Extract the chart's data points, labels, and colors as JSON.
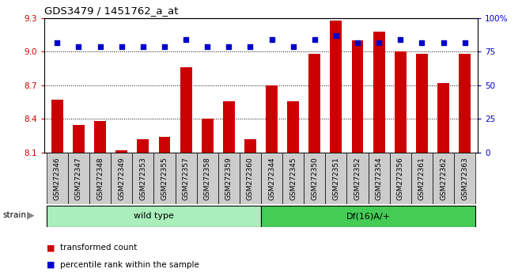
{
  "title": "GDS3479 / 1451762_a_at",
  "samples": [
    "GSM272346",
    "GSM272347",
    "GSM272348",
    "GSM272349",
    "GSM272353",
    "GSM272355",
    "GSM272357",
    "GSM272358",
    "GSM272359",
    "GSM272360",
    "GSM272344",
    "GSM272345",
    "GSM272350",
    "GSM272351",
    "GSM272352",
    "GSM272354",
    "GSM272356",
    "GSM272361",
    "GSM272362",
    "GSM272363"
  ],
  "red_values": [
    8.57,
    8.35,
    8.38,
    8.12,
    8.22,
    8.24,
    8.86,
    8.4,
    8.56,
    8.22,
    8.7,
    8.56,
    8.98,
    9.28,
    9.1,
    9.18,
    9.0,
    8.98,
    8.72,
    8.98
  ],
  "blue_values": [
    82,
    79,
    79,
    79,
    79,
    79,
    84,
    79,
    79,
    79,
    84,
    79,
    84,
    87,
    82,
    82,
    84,
    82,
    82,
    82
  ],
  "wild_type_count": 10,
  "df16_count": 10,
  "ylim_left": [
    8.1,
    9.3
  ],
  "ylim_right": [
    0,
    100
  ],
  "yticks_left": [
    8.1,
    8.4,
    8.7,
    9.0,
    9.3
  ],
  "yticks_right": [
    0,
    25,
    50,
    75,
    100
  ],
  "ytick_labels_left": [
    "8.1",
    "8.4",
    "8.7",
    "9.0",
    "9.3"
  ],
  "ytick_labels_right": [
    "0",
    "25",
    "50",
    "75",
    "100%"
  ],
  "hlines": [
    9.0,
    8.7,
    8.4
  ],
  "bar_color": "#cc0000",
  "dot_color": "#0000cc",
  "wild_type_color": "#aaeebb",
  "df16_color": "#44cc55",
  "tick_box_color": "#cccccc",
  "bar_width": 0.55,
  "legend_items": [
    "transformed count",
    "percentile rank within the sample"
  ]
}
